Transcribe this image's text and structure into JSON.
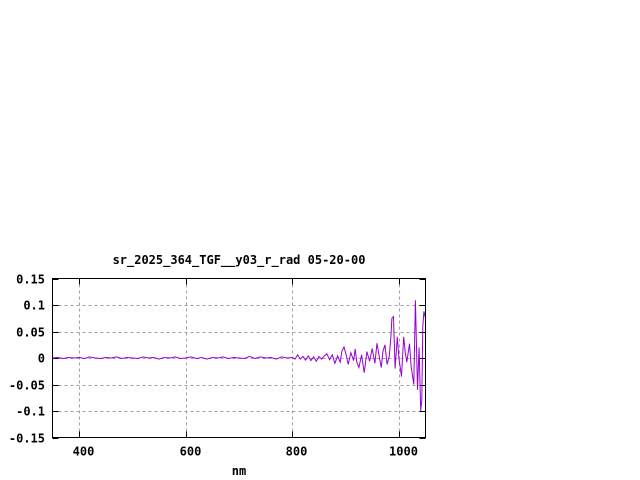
{
  "chart_data": {
    "type": "line",
    "title": "sr_2025_364_TGF__y03_r_rad 05-20-00",
    "xlabel": "nm",
    "ylabel": "",
    "xlim": [
      350,
      1050
    ],
    "ylim": [
      -0.15,
      0.15
    ],
    "grid": true,
    "xticks": [
      400,
      600,
      800,
      1000
    ],
    "yticks": [
      0.15,
      0.1,
      0.05,
      0,
      -0.05,
      -0.1,
      -0.15
    ],
    "ytick_labels": [
      "0.15",
      "0.1",
      "0.05",
      "0",
      "-0.05",
      "-0.1",
      "-0.15"
    ],
    "xtick_labels": [
      "400",
      "600",
      "800",
      "1000"
    ],
    "series": [
      {
        "color": "#9400d3",
        "x": [
          350,
          360,
          370,
          380,
          390,
          400,
          410,
          420,
          430,
          440,
          450,
          460,
          470,
          480,
          490,
          500,
          510,
          520,
          530,
          540,
          550,
          560,
          570,
          580,
          590,
          600,
          610,
          620,
          630,
          640,
          650,
          660,
          670,
          680,
          690,
          700,
          710,
          720,
          730,
          740,
          750,
          760,
          770,
          780,
          790,
          800,
          805,
          810,
          815,
          820,
          825,
          830,
          835,
          840,
          845,
          850,
          855,
          860,
          865,
          870,
          875,
          880,
          885,
          890,
          893,
          897,
          901,
          905,
          910,
          915,
          918,
          921,
          925,
          930,
          935,
          940,
          945,
          950,
          955,
          959,
          963,
          967,
          970,
          974,
          978,
          982,
          985,
          987,
          990,
          993,
          997,
          1000,
          1005,
          1009,
          1012,
          1015,
          1020,
          1023,
          1025,
          1028,
          1031,
          1033,
          1035,
          1038,
          1041,
          1043,
          1045,
          1047,
          1050
        ],
        "y": [
          0,
          0.001,
          -0.001,
          0.001,
          0,
          0.001,
          -0.001,
          0.002,
          0,
          -0.001,
          0.001,
          0,
          0.002,
          -0.001,
          0.001,
          0,
          -0.001,
          0.002,
          0,
          0.001,
          -0.002,
          0.001,
          0,
          0.002,
          -0.001,
          0,
          0.002,
          -0.001,
          0.001,
          -0.002,
          0.001,
          0,
          0.002,
          -0.001,
          0.001,
          0,
          -0.001,
          0.003,
          -0.001,
          0.002,
          0,
          0.001,
          -0.002,
          0.002,
          0,
          0.001,
          -0.002,
          0.006,
          -0.002,
          0.003,
          -0.004,
          0.004,
          -0.005,
          0.002,
          -0.006,
          0.003,
          -0.002,
          0.004,
          0.008,
          -0.003,
          0.006,
          -0.01,
          0.004,
          -0.008,
          0.012,
          0.021,
          0.006,
          -0.012,
          0.01,
          -0.005,
          0.017,
          -0.008,
          -0.018,
          0.006,
          -0.028,
          0.012,
          -0.006,
          0.018,
          -0.01,
          0.028,
          0.004,
          -0.018,
          0.012,
          0.025,
          -0.012,
          0.004,
          0.04,
          0.075,
          0.078,
          -0.02,
          0.04,
          0,
          -0.035,
          0.04,
          0.01,
          -0.008,
          0.027,
          -0.015,
          -0.03,
          -0.05,
          0.109,
          0.03,
          -0.06,
          0.02,
          -0.1,
          -0.08,
          0.06,
          0.088,
          0.075
        ]
      }
    ]
  }
}
